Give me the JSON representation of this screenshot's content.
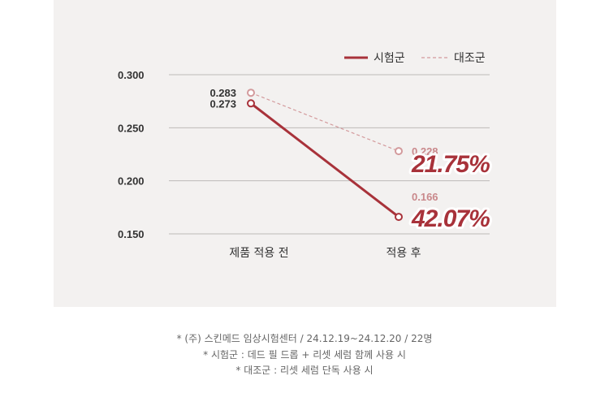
{
  "chart_data": {
    "type": "line",
    "categories": [
      "제품 적용 전",
      "적용 후"
    ],
    "series": [
      {
        "name": "시험군",
        "values": [
          0.273,
          0.166
        ],
        "style": "solid",
        "color": "#a8323a",
        "value_labels": [
          "0.273",
          "0.166"
        ]
      },
      {
        "name": "대조군",
        "values": [
          0.283,
          0.228
        ],
        "style": "dashed",
        "color": "#d39a9c",
        "value_labels": [
          "0.283",
          "0.228"
        ]
      }
    ],
    "ylim": [
      0.15,
      0.3
    ],
    "yticks": [
      0.3,
      0.25,
      0.2,
      0.15
    ],
    "ytick_labels": [
      "0.300",
      "0.250",
      "0.200",
      "0.150"
    ],
    "grid": true,
    "legend_position": "top-right",
    "annotations": [
      {
        "series": "대조군",
        "text": "21.75%"
      },
      {
        "series": "시험군",
        "text": "42.07%"
      }
    ],
    "title": "",
    "xlabel": "",
    "ylabel": ""
  },
  "colors": {
    "panel_bg": "#f3f1f0",
    "grid": "#bdbab8",
    "accent": "#a8323a",
    "control": "#d39a9c"
  },
  "footnotes": [
    "* (주) 스킨메드 임상시험센터 / 24.12.19~24.12.20 / 22명",
    "* 시험군 : 데드 필 드롭 + 리셋 세럼 함께 사용 시",
    "* 대조군 : 리셋 세럼 단독 사용 시"
  ]
}
